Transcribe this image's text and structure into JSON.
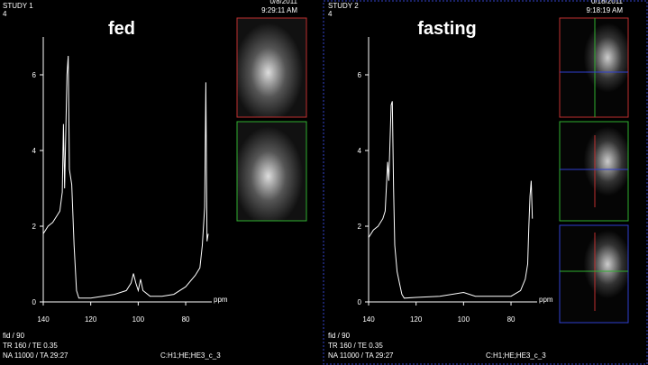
{
  "panels": [
    {
      "study": "STUDY 1",
      "number": "4",
      "date": "0/8/2011",
      "time": "9:29:11 AM",
      "label": "fed",
      "footer": [
        "fid / 90",
        "TR 160 / TE 0.35",
        "NA 11000 / TA 29:27"
      ],
      "coil": "C:H1;HE;HE3_c_3"
    },
    {
      "study": "STUDY 2",
      "number": "4",
      "date": "0/18/2011",
      "time": "9:18:19 AM",
      "label": "fasting",
      "footer": [
        "fid / 90",
        "TR 160 / TE 0.35",
        "NA 11000 / TA 29:27"
      ],
      "coil": "C:H1;HE;HE3_c_3"
    }
  ],
  "chart_data": [
    {
      "type": "line",
      "xlabel": "ppm",
      "xlim": [
        140,
        69
      ],
      "ylim": [
        0,
        7
      ],
      "xticks": [
        140,
        120,
        100,
        80
      ],
      "yticks": [
        0,
        2,
        4,
        6
      ],
      "color": "#ffffff",
      "x": [
        140,
        138,
        136,
        134,
        133,
        132,
        131.5,
        131,
        130,
        129.5,
        129,
        128,
        127,
        126,
        125,
        120,
        115,
        110,
        105,
        103,
        102,
        101,
        100,
        99,
        98,
        95,
        90,
        85,
        80,
        76,
        74,
        73,
        72,
        71.5,
        71,
        70.5
      ],
      "values": [
        1.8,
        2.0,
        2.1,
        2.3,
        2.4,
        2.9,
        4.7,
        3.0,
        6.0,
        6.5,
        3.5,
        3.1,
        1.5,
        0.3,
        0.1,
        0.1,
        0.15,
        0.2,
        0.3,
        0.5,
        0.75,
        0.5,
        0.3,
        0.6,
        0.3,
        0.15,
        0.15,
        0.2,
        0.4,
        0.7,
        0.9,
        1.5,
        2.5,
        5.8,
        1.6,
        1.8
      ]
    },
    {
      "type": "line",
      "xlabel": "ppm",
      "xlim": [
        140,
        69
      ],
      "ylim": [
        0,
        7
      ],
      "xticks": [
        140,
        120,
        100,
        80
      ],
      "yticks": [
        0,
        2,
        4,
        6
      ],
      "color": "#ffffff",
      "x": [
        140,
        138,
        136,
        134,
        133,
        132,
        131.5,
        130.5,
        130,
        129.5,
        129,
        128,
        127,
        126,
        125,
        120,
        110,
        100,
        95,
        90,
        80,
        76,
        74,
        73,
        72.5,
        72,
        71.5,
        71
      ],
      "values": [
        1.7,
        1.9,
        2.0,
        2.2,
        2.4,
        3.7,
        3.2,
        5.2,
        5.3,
        3.0,
        1.5,
        0.8,
        0.5,
        0.2,
        0.1,
        0.12,
        0.15,
        0.25,
        0.15,
        0.15,
        0.15,
        0.3,
        0.6,
        1.0,
        2.0,
        2.8,
        3.2,
        2.2
      ]
    }
  ]
}
